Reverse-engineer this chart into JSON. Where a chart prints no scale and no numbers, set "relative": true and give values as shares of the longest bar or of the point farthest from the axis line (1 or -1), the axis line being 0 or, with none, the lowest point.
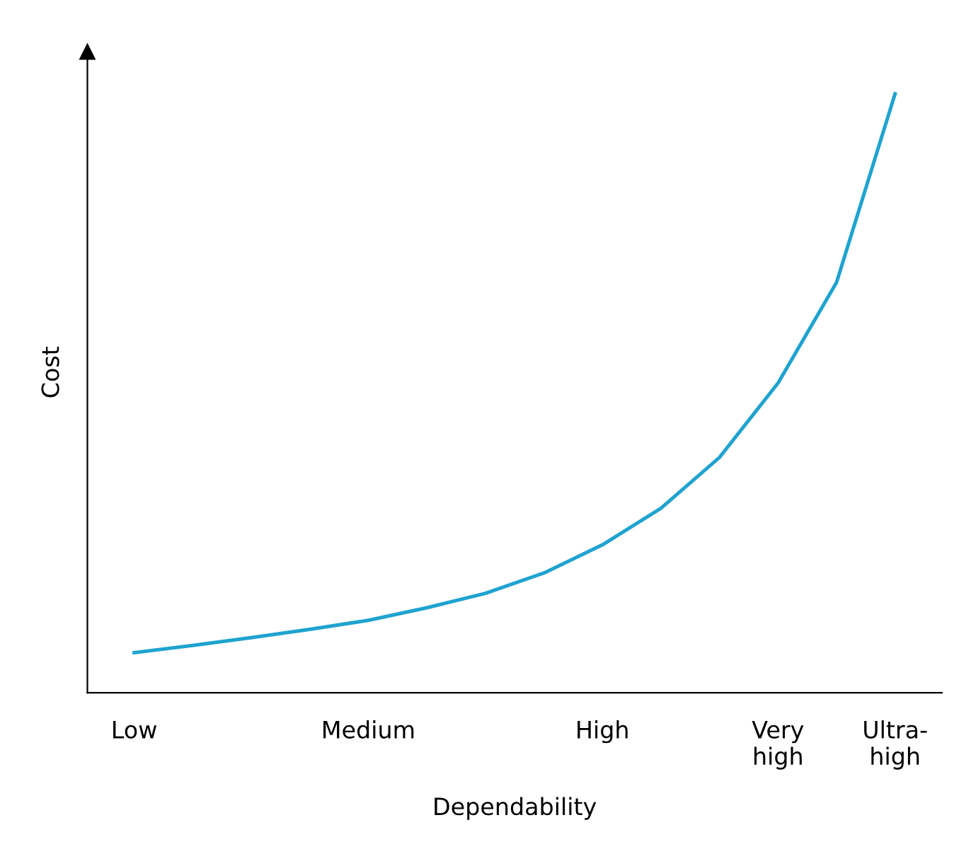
{
  "chart_data": {
    "type": "line",
    "relative": true,
    "xlabel": "Dependability",
    "ylabel": "Cost",
    "categories": [
      "Low",
      null,
      null,
      null,
      "Medium",
      null,
      null,
      null,
      "High",
      null,
      null,
      "Very\nhigh",
      null,
      "Ultra-\nhigh"
    ],
    "series": [
      {
        "color": "#1fa3d0",
        "values": [
          0.067,
          0.079,
          0.092,
          0.106,
          0.121,
          0.142,
          0.166,
          0.2,
          0.247,
          0.308,
          0.393,
          0.517,
          0.685,
          1.0
        ]
      }
    ],
    "grid": false,
    "legend": false,
    "marker": "none",
    "line_style": "solid"
  }
}
